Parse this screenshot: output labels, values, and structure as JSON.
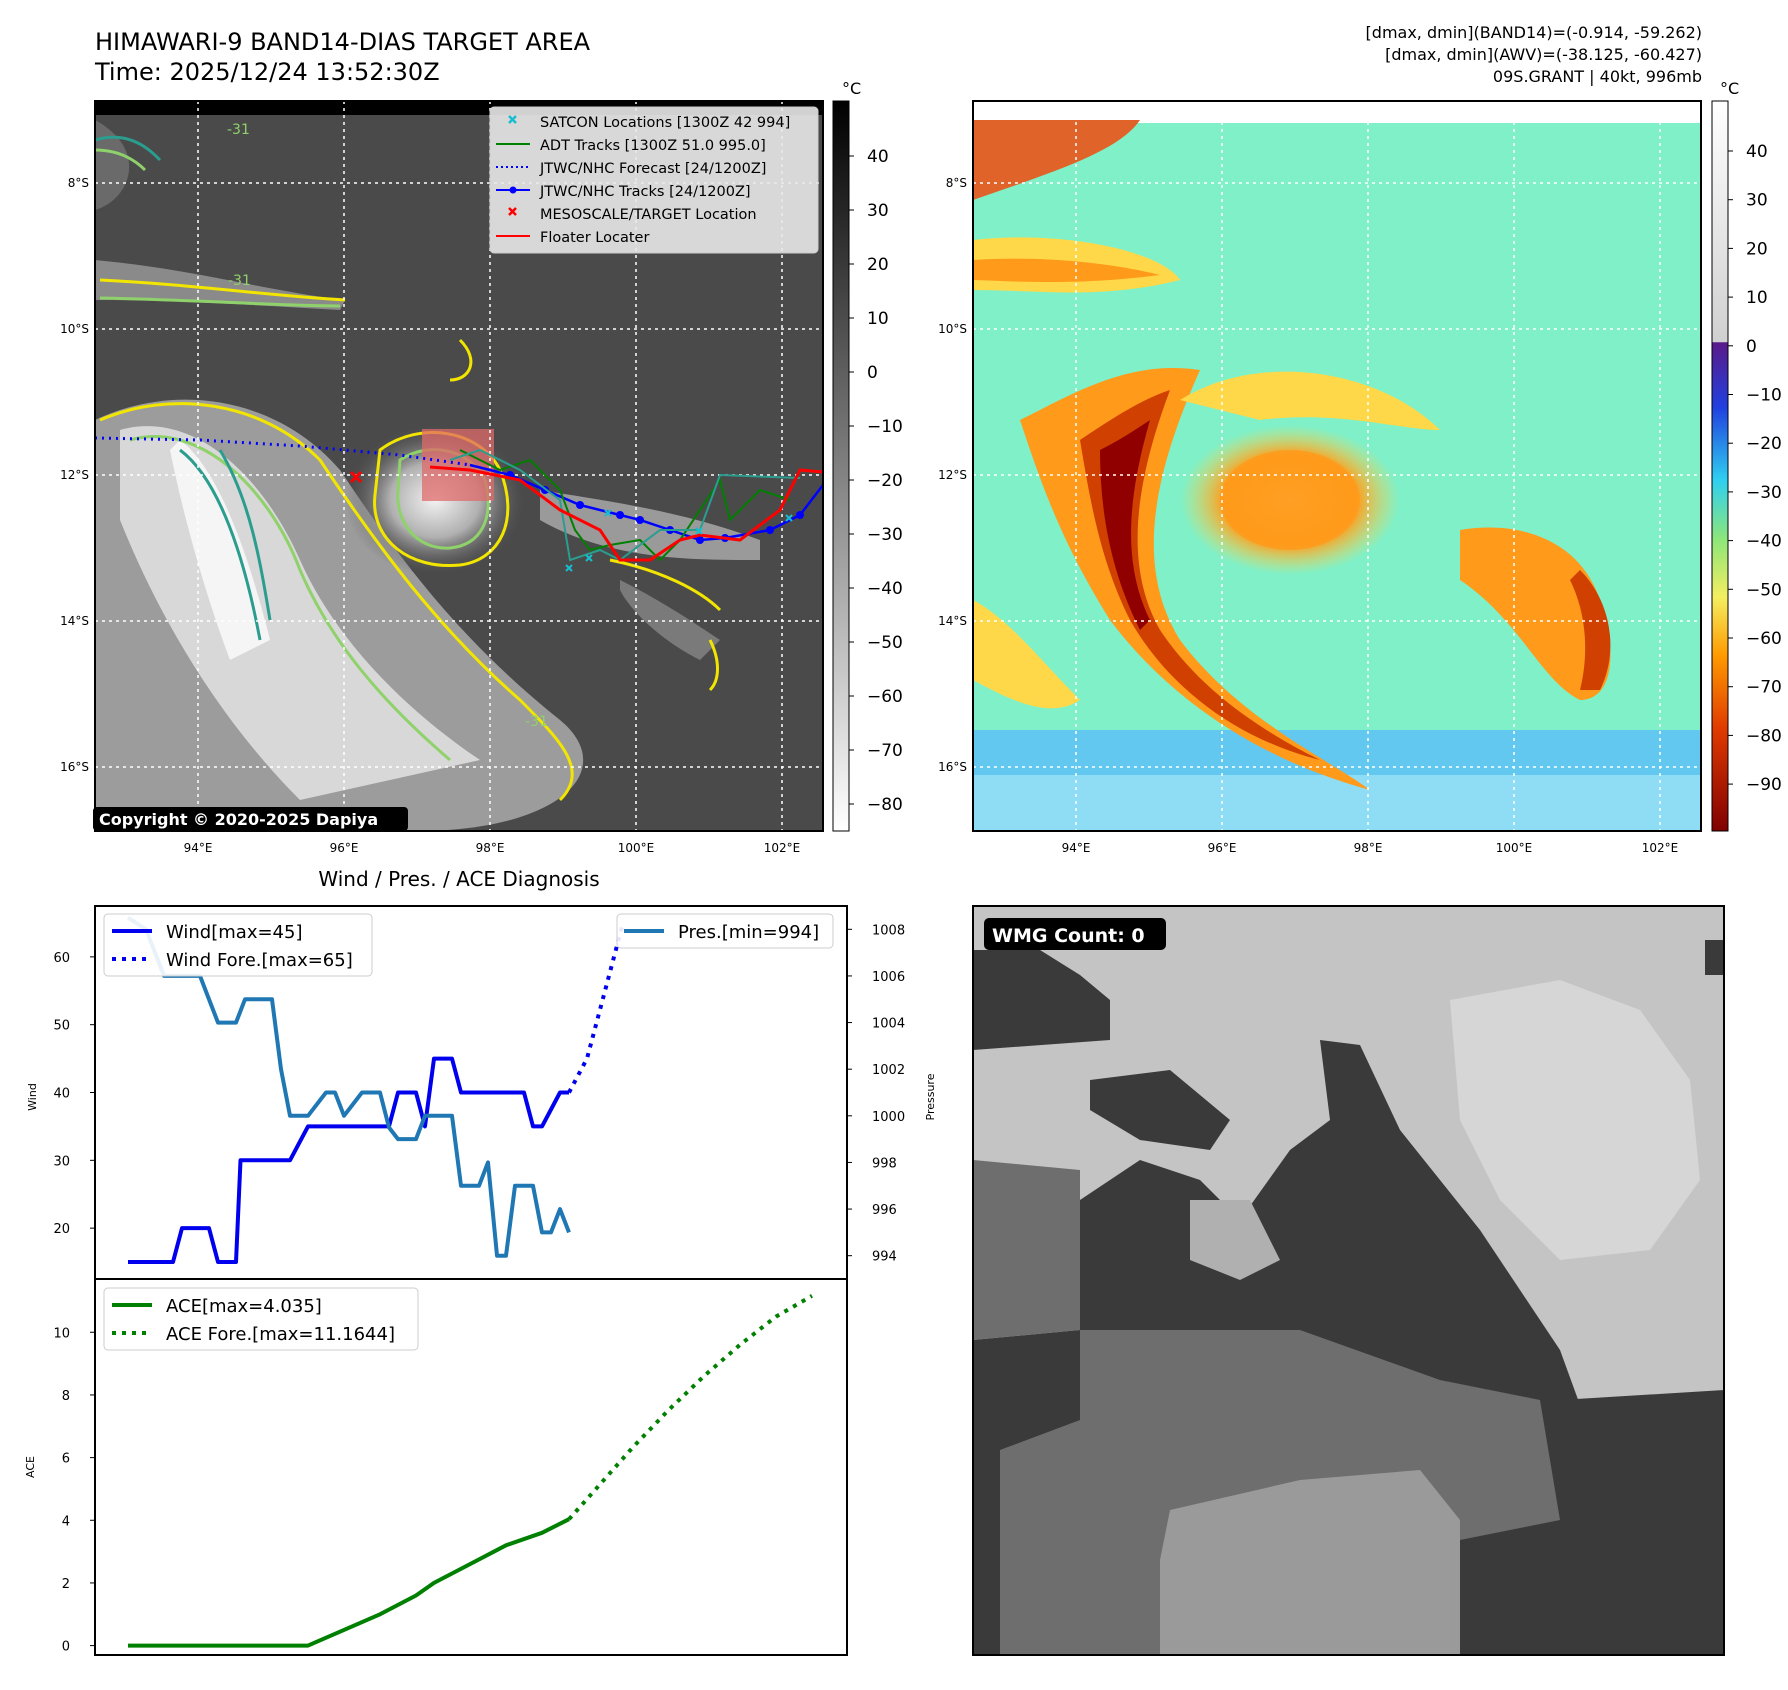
{
  "header": {
    "title_line1": "HIMAWARI-9 BAND14-DIAS TARGET AREA",
    "title_line2": "Time: 2025/12/24 13:52:30Z",
    "info_line1": "[dmax, dmin](BAND14)=(-0.914, -59.262)",
    "info_line2": "[dmax, dmin](AWV)=(-38.125, -60.427)",
    "info_line3": "09S.GRANT | 40kt, 996mb"
  },
  "colors": {
    "wind": "#0000ee",
    "pressure": "#1f77b4",
    "ace": "#008000",
    "satcon": "#17becf",
    "adt": "#008000",
    "jtwc": "#0000ff",
    "target": "#ff0000",
    "floater": "#ff0000",
    "contour_yellow": "#f2e600",
    "contour_green": "#8fd16a",
    "contour_teal": "#2a9d8f"
  },
  "map": {
    "lat_labels": [
      "8°S",
      "10°S",
      "12°S",
      "14°S",
      "16°S"
    ],
    "lon_labels": [
      "94°E",
      "96°E",
      "98°E",
      "100°E",
      "102°E"
    ],
    "copyright": "Copyright © 2020-2025 Dapiya",
    "contour_label": "-31",
    "legend": [
      {
        "label": "SATCON Locations [1300Z 42 994]",
        "icon": "cyan-x-marker"
      },
      {
        "label": "ADT Tracks [1300Z 51.0 995.0]",
        "icon": "green-line"
      },
      {
        "label": "JTWC/NHC Forecast [24/1200Z]",
        "icon": "blue-dotted-line"
      },
      {
        "label": "JTWC/NHC Tracks [24/1200Z]",
        "icon": "blue-line-dot"
      },
      {
        "label": "MESOSCALE/TARGET Location",
        "icon": "red-x-marker"
      },
      {
        "label": "Floater Locater",
        "icon": "red-line"
      }
    ],
    "colorbar_ir": {
      "unit": "°C",
      "ticks": [
        "40",
        "30",
        "20",
        "10",
        "0",
        "−10",
        "−20",
        "−30",
        "−40",
        "−50",
        "−60",
        "−70",
        "−80"
      ]
    },
    "colorbar_awv": {
      "unit": "°C",
      "ticks": [
        "40",
        "30",
        "20",
        "10",
        "0",
        "−10",
        "−20",
        "−30",
        "−40",
        "−50",
        "−60",
        "−70",
        "−80",
        "−90"
      ]
    }
  },
  "chart_data": [
    {
      "type": "line",
      "title": "Wind / Pres. / ACE Diagnosis",
      "ylabel": "Wind",
      "y2label": "Pressure",
      "ylim": [
        12.5,
        67.5
      ],
      "y2lim": [
        993,
        1009
      ],
      "yticks": [
        "20",
        "30",
        "40",
        "50",
        "60"
      ],
      "y2ticks": [
        "994",
        "996",
        "998",
        "1000",
        "1002",
        "1004",
        "1006",
        "1008"
      ],
      "legend_left": [
        "Wind[max=45]",
        "Wind Fore.[max=65]"
      ],
      "legend_right": [
        "Pres.[min=994]"
      ],
      "series": [
        {
          "name": "Wind[max=45]",
          "style": "solid",
          "x": [
            0,
            2,
            4,
            5,
            6,
            8,
            9,
            10,
            12,
            12.5,
            14,
            16,
            18,
            20,
            22,
            24,
            26,
            28,
            29,
            30,
            32,
            33,
            34,
            36,
            37,
            38,
            40,
            41,
            42,
            44,
            45,
            46,
            48,
            49
          ],
          "values": [
            15,
            15,
            15,
            15,
            20,
            20,
            20,
            15,
            15,
            30,
            30,
            30,
            30,
            35,
            35,
            35,
            35,
            35,
            35,
            40,
            40,
            35,
            45,
            45,
            40,
            40,
            40,
            40,
            40,
            40,
            35,
            35,
            40,
            40
          ]
        },
        {
          "name": "Wind Fore.[max=65]",
          "style": "dotted",
          "x": [
            49,
            51,
            53,
            55
          ],
          "values": [
            40,
            45,
            55,
            65
          ]
        },
        {
          "name": "Pres.[min=994]",
          "style": "solid",
          "x": [
            0,
            2,
            4,
            6,
            8,
            9,
            10,
            12,
            13,
            14,
            16,
            17,
            18,
            20,
            22,
            23,
            24,
            26,
            28,
            29,
            30,
            32,
            33,
            34,
            35,
            36,
            37,
            38,
            39,
            40,
            41,
            42,
            43,
            44,
            45,
            46,
            47,
            48,
            49
          ],
          "values": [
            1008.5,
            1008,
            1006,
            1006,
            1006,
            1005,
            1004,
            1004,
            1005,
            1005,
            1005,
            1002,
            1000,
            1000,
            1001,
            1001,
            1000,
            1001,
            1001,
            999.5,
            999,
            999,
            1000,
            1000,
            1000,
            1000,
            997,
            997,
            997,
            998,
            994,
            994,
            997,
            997,
            997,
            995,
            995,
            996,
            995
          ]
        }
      ]
    },
    {
      "type": "line",
      "ylabel": "ACE",
      "ylim": [
        -0.3,
        11.7
      ],
      "yticks": [
        "0",
        "2",
        "4",
        "6",
        "8",
        "10"
      ],
      "legend": [
        "ACE[max=4.035]",
        "ACE Fore.[max=11.1644]"
      ],
      "series": [
        {
          "name": "ACE[max=4.035]",
          "style": "solid",
          "x": [
            0,
            10,
            20,
            24,
            28,
            32,
            34,
            38,
            42,
            46,
            49
          ],
          "values": [
            0,
            0,
            0,
            0.5,
            1.0,
            1.6,
            2.0,
            2.6,
            3.2,
            3.6,
            4.035
          ]
        },
        {
          "name": "ACE Fore.[max=11.1644]",
          "style": "dotted",
          "x": [
            49,
            52,
            56,
            60,
            64,
            68,
            72,
            76
          ],
          "values": [
            4.035,
            5.0,
            6.3,
            7.5,
            8.6,
            9.6,
            10.5,
            11.1644
          ]
        }
      ]
    }
  ],
  "wmg": {
    "label": "WMG Count: 0"
  }
}
